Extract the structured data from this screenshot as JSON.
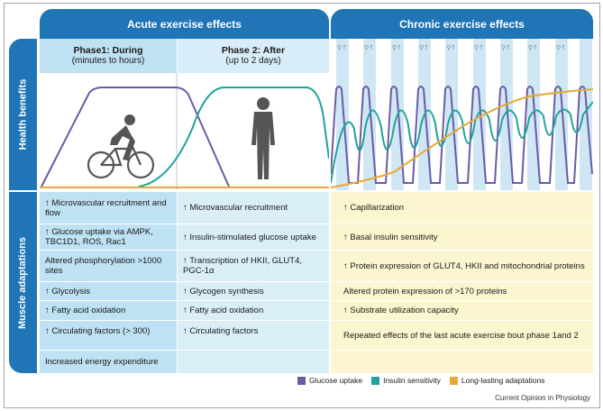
{
  "headers": {
    "acute": "Acute exercise effects",
    "chronic": "Chronic exercise effects"
  },
  "side": {
    "health": "Health benefits",
    "muscle": "Muscle adaptations"
  },
  "phases": {
    "phase1_title": "Phase1: During",
    "phase1_sub": "(minutes to hours)",
    "phase2_title": "Phase 2: After",
    "phase2_sub": "(up to 2 days)"
  },
  "phase1_items": [
    "↑ Microvascular recruitment and flow",
    "↑ Glucose uptake via AMPK, TBC1D1, ROS, Rac1",
    "Altered phosphorylation >1000 sites",
    "↑ Glycolysis",
    "↑ Fatty acid oxidation",
    "↑ Circulating factors (> 300)",
    "Increased energy expenditure"
  ],
  "phase2_items": [
    "↑ Microvascular recruitment",
    "↑ Insulin-stimulated glucose uptake",
    "↑ Transcription of HKII, GLUT4, PGC-1α",
    "↑ Glycogen synthesis",
    "↑ Fatty acid oxidation",
    "↑ Circulating factors"
  ],
  "chronic_items": [
    "↑ Capillarization",
    "↑ Basal insulin sensitivity",
    "↑ Protein expression of GLUT4, HKII and mitochondrial proteins",
    "Altered protein expression of >170 proteins",
    "↑ Substrate utilization capacity",
    "Repeated effects of the last acute exercise bout phase 1and 2"
  ],
  "legend": [
    {
      "label": "Glucose uptake",
      "color": "#6b5ba6"
    },
    {
      "label": "Insulin sensitivity",
      "color": "#1fa39a"
    },
    {
      "label": "Long-lasting adaptations",
      "color": "#e8a838"
    }
  ],
  "colors": {
    "header_blue": "#1f75b6",
    "phase1_bg": "#bfe1f4",
    "phase2_bg": "#daeef8",
    "chronic_bg": "#fbf6cf"
  },
  "icons": {
    "cyclist": "cyclist-icon",
    "person": "standing-person-icon",
    "mini_cyclist": "mini-cyclist-icon",
    "up_arrow": "up-arrow-icon"
  },
  "source": "Current Opinion in Physiology"
}
